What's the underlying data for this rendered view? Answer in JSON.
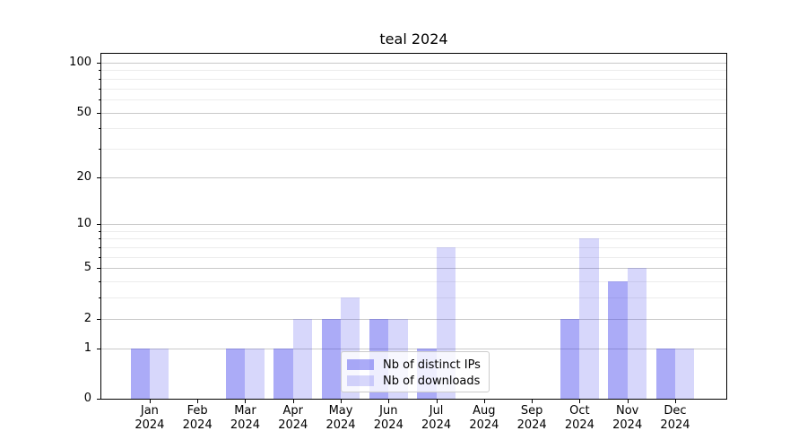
{
  "chart_data": {
    "type": "bar",
    "title": "teal 2024",
    "x_tick_months": [
      "Jan",
      "Feb",
      "Mar",
      "Apr",
      "May",
      "Jun",
      "Jul",
      "Aug",
      "Sep",
      "Oct",
      "Nov",
      "Dec"
    ],
    "x_tick_year": "2024",
    "series": [
      {
        "name": "Nb of distinct IPs",
        "color": "rgba(68,68,238,0.45)",
        "values": [
          1,
          0,
          1,
          1,
          2,
          2,
          1,
          0,
          0,
          2,
          4,
          1
        ]
      },
      {
        "name": "Nb of downloads",
        "color": "rgba(68,68,238,0.21)",
        "values": [
          1,
          0,
          1,
          2,
          3,
          2,
          7,
          0,
          0,
          8,
          5,
          1
        ]
      }
    ],
    "y_axis": {
      "scale": "log1p",
      "major_ticks": [
        100,
        50,
        20,
        10,
        5,
        2,
        1,
        0
      ],
      "minor_ticks": [
        90,
        80,
        70,
        60,
        40,
        30,
        9,
        8,
        7,
        6,
        4,
        3
      ],
      "top_value": 113
    },
    "legend": {
      "position": "lower center"
    },
    "grid": true,
    "colors": {
      "grid_major": "#c9c9c9",
      "grid_minor": "#ececec",
      "spine": "#000000",
      "text": "#000000"
    }
  }
}
